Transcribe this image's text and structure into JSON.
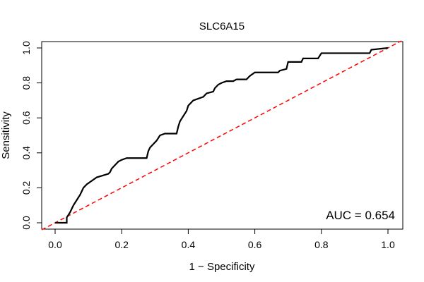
{
  "chart_data": {
    "type": "line",
    "title": "SLC6A15",
    "xlabel": "1 − Specificity",
    "ylabel": "Sensitivity",
    "xlim": [
      0,
      1
    ],
    "ylim": [
      0,
      1
    ],
    "x_ticks": [
      "0.0",
      "0.2",
      "0.4",
      "0.6",
      "0.8",
      "1.0"
    ],
    "y_ticks": [
      "0.0",
      "0.2",
      "0.4",
      "0.6",
      "0.8",
      "1.0"
    ],
    "grid": false,
    "annotation": "AUC = 0.654",
    "auc": 0.654,
    "colors": {
      "roc": "#000000",
      "reference": "#ff0000"
    },
    "series": [
      {
        "style": "solid",
        "x": [
          0.0,
          0.035,
          0.035,
          0.045,
          0.055,
          0.065,
          0.075,
          0.085,
          0.095,
          0.11,
          0.125,
          0.16,
          0.165,
          0.17,
          0.18,
          0.19,
          0.2,
          0.215,
          0.275,
          0.28,
          0.285,
          0.295,
          0.305,
          0.315,
          0.33,
          0.365,
          0.37,
          0.375,
          0.385,
          0.395,
          0.4,
          0.415,
          0.43,
          0.445,
          0.455,
          0.475,
          0.48,
          0.49,
          0.5,
          0.515,
          0.525,
          0.535,
          0.545,
          0.575,
          0.585,
          0.6,
          0.61,
          0.67,
          0.675,
          0.695,
          0.7,
          0.74,
          0.745,
          0.79,
          0.8,
          0.945,
          0.95,
          1.0
        ],
        "y": [
          0.0,
          0.0,
          0.03,
          0.06,
          0.1,
          0.13,
          0.16,
          0.2,
          0.22,
          0.24,
          0.26,
          0.28,
          0.29,
          0.31,
          0.33,
          0.35,
          0.36,
          0.37,
          0.37,
          0.41,
          0.43,
          0.45,
          0.47,
          0.5,
          0.51,
          0.51,
          0.55,
          0.58,
          0.61,
          0.64,
          0.67,
          0.7,
          0.71,
          0.72,
          0.74,
          0.75,
          0.77,
          0.79,
          0.8,
          0.81,
          0.81,
          0.81,
          0.82,
          0.82,
          0.84,
          0.86,
          0.86,
          0.86,
          0.87,
          0.88,
          0.92,
          0.92,
          0.94,
          0.94,
          0.97,
          0.97,
          0.99,
          1.0
        ]
      },
      {
        "style": "dashed",
        "x": [
          0,
          1
        ],
        "y": [
          0,
          1
        ]
      }
    ]
  }
}
